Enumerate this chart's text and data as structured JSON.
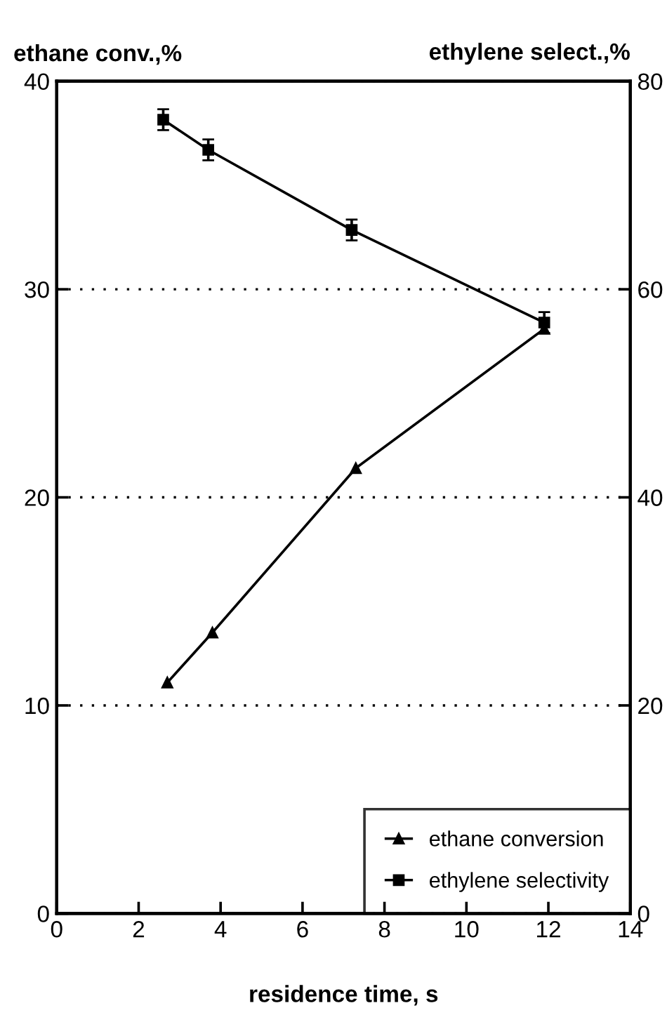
{
  "chart_data": {
    "type": "line",
    "xlabel": "residence time, s",
    "ylabel": "ethane conv.,%",
    "y2label": "ethylene select.,%",
    "series": [
      {
        "name": "ethane conversion",
        "color": "#000000",
        "marker": "triangle",
        "x": [
          2.7,
          3.8,
          7.3,
          11.9
        ],
        "values": [
          11.1,
          13.5,
          21.4,
          28.1
        ]
      },
      {
        "name": "ethylene selectivity",
        "color": "#000000",
        "marker": "square",
        "axis": "y2",
        "x": [
          2.6,
          3.7,
          7.2,
          11.9
        ],
        "values": [
          76.3,
          73.4,
          65.7,
          56.8
        ],
        "errors": [
          1,
          1,
          1,
          1
        ]
      }
    ],
    "xlim": [
      0,
      14
    ],
    "xticks": [
      0,
      2,
      4,
      6,
      8,
      10,
      12,
      14
    ],
    "ylim": [
      0,
      40
    ],
    "yticks": [
      0,
      10,
      20,
      30,
      40
    ],
    "y2lim": [
      0,
      80
    ],
    "y2ticks": [
      0,
      20,
      40,
      60,
      80
    ],
    "grid": "y",
    "legend": "bottom right",
    "line_style": "solid"
  }
}
